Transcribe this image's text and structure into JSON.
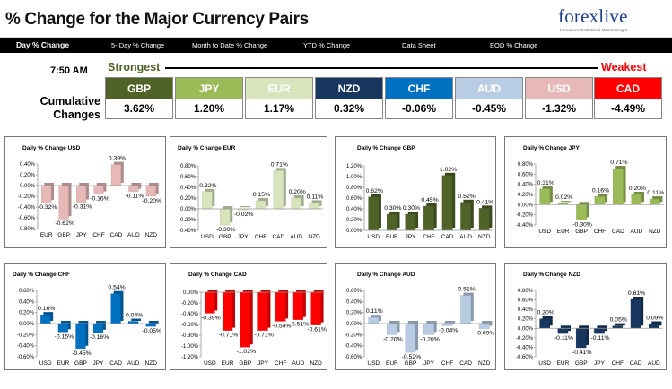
{
  "header": {
    "title": "% Change for the Major Currency Pairs",
    "logo_text": "forexlive",
    "logo_tagline": "Forexlive's Institutional Market Insight"
  },
  "nav": {
    "items": [
      {
        "label": "Day % Change",
        "active": true
      },
      {
        "label": "5- Day % Change",
        "active": false
      },
      {
        "label": "Month to Date % Change",
        "active": false
      },
      {
        "label": "YTD % Change",
        "active": false
      },
      {
        "label": "Data Sheet",
        "active": false
      },
      {
        "label": "EOD % Change",
        "active": false
      }
    ]
  },
  "summary": {
    "time": "7:50 AM",
    "strongest_label": "Strongest",
    "weakest_label": "Weakest",
    "cumulative_label": "Cumulative Changes",
    "currencies": [
      {
        "code": "GBP",
        "value": "3.62%",
        "color": "#4f6228"
      },
      {
        "code": "JPY",
        "value": "1.20%",
        "color": "#9bbb59"
      },
      {
        "code": "EUR",
        "value": "1.17%",
        "color": "#d7e4bc"
      },
      {
        "code": "NZD",
        "value": "0.32%",
        "color": "#17375e"
      },
      {
        "code": "CHF",
        "value": "-0.06%",
        "color": "#0070c0"
      },
      {
        "code": "AUD",
        "value": "-0.45%",
        "color": "#b8cce4"
      },
      {
        "code": "USD",
        "value": "-1.32%",
        "color": "#e6b9b8"
      },
      {
        "code": "CAD",
        "value": "-4.49%",
        "color": "#ff0000"
      }
    ]
  },
  "chart_data": [
    {
      "type": "bar",
      "title": "Daily % Change USD",
      "categories": [
        "EUR",
        "GBP",
        "JPY",
        "CHF",
        "CAD",
        "AUD",
        "NZD"
      ],
      "values": [
        -0.32,
        -0.62,
        -0.31,
        -0.16,
        0.39,
        -0.11,
        -0.2
      ],
      "value_labels": [
        "-0.32%",
        "-0.62%",
        "-0.31%",
        "-0.16%",
        "0.39%",
        "-0.11%",
        "-0.20%"
      ],
      "ylim": [
        -0.8,
        0.4
      ],
      "yticks": [
        "0.40%",
        "0.20%",
        "0.00%",
        "-0.20%",
        "-0.40%",
        "-0.60%",
        "-0.80%"
      ],
      "color": "#e6b9b8"
    },
    {
      "type": "bar",
      "title": "Daily % Change EUR",
      "categories": [
        "USD",
        "GBP",
        "JPY",
        "CHF",
        "CAD",
        "AUD",
        "NZD"
      ],
      "values": [
        0.32,
        -0.3,
        -0.02,
        0.15,
        0.71,
        0.2,
        0.11
      ],
      "value_labels": [
        "0.32%",
        "-0.30%",
        "-0.02%",
        "0.15%",
        "0.71%",
        "0.20%",
        "0.11%"
      ],
      "ylim": [
        -0.4,
        0.8
      ],
      "yticks": [
        "0.80%",
        "0.60%",
        "0.40%",
        "0.20%",
        "0.00%",
        "-0.20%",
        "-0.40%"
      ],
      "color": "#d7e4bc"
    },
    {
      "type": "bar",
      "title": "Daily % Change GBP",
      "categories": [
        "USD",
        "EUR",
        "JPY",
        "CHF",
        "CAD",
        "AUD",
        "NZD"
      ],
      "values": [
        0.62,
        0.3,
        0.3,
        0.45,
        1.02,
        0.52,
        0.41
      ],
      "value_labels": [
        "0.62%",
        "0.30%",
        "0.30%",
        "0.45%",
        "1.02%",
        "0.52%",
        "0.41%"
      ],
      "ylim": [
        0,
        1.2
      ],
      "yticks": [
        "1.20%",
        "1.00%",
        "0.80%",
        "0.60%",
        "0.40%",
        "0.20%",
        "0.00%"
      ],
      "color": "#4f6228"
    },
    {
      "type": "bar",
      "title": "Daily % Change JPY",
      "categories": [
        "USD",
        "EUR",
        "GBP",
        "CHF",
        "CAD",
        "AUD",
        "NZD"
      ],
      "values": [
        0.31,
        0.02,
        -0.3,
        0.16,
        0.71,
        0.2,
        0.11
      ],
      "value_labels": [
        "0.31%",
        "0.02%",
        "-0.30%",
        "0.16%",
        "0.71%",
        "0.20%",
        "0.11%"
      ],
      "ylim": [
        -0.4,
        0.8
      ],
      "yticks": [
        "0.80%",
        "0.60%",
        "0.40%",
        "0.20%",
        "0.00%",
        "-0.20%",
        "-0.40%"
      ],
      "color": "#9bbb59"
    },
    {
      "type": "bar",
      "title": "Daily % Change CHF",
      "categories": [
        "USD",
        "EUR",
        "GBP",
        "JPY",
        "CAD",
        "AUD",
        "NZD"
      ],
      "values": [
        0.16,
        -0.15,
        -0.45,
        -0.16,
        0.54,
        0.04,
        -0.05
      ],
      "value_labels": [
        "0.16%",
        "-0.15%",
        "-0.45%",
        "-0.16%",
        "0.54%",
        "0.04%",
        "-0.05%"
      ],
      "ylim": [
        -0.6,
        0.6
      ],
      "yticks": [
        "0.60%",
        "0.40%",
        "0.20%",
        "0.00%",
        "-0.20%",
        "-0.40%",
        "-0.60%"
      ],
      "color": "#0070c0"
    },
    {
      "type": "bar",
      "title": "Daily % Change CAD",
      "categories": [
        "USD",
        "EUR",
        "GBP",
        "JPY",
        "CHF",
        "AUD",
        "NZD"
      ],
      "values": [
        -0.39,
        -0.71,
        -1.02,
        -0.71,
        -0.54,
        -0.51,
        -0.61
      ],
      "value_labels": [
        "-0.39%",
        "-0.71%",
        "-1.02%",
        "-0.71%",
        "-0.54%",
        "-0.51%",
        "-0.61%"
      ],
      "ylim": [
        -1.2,
        0
      ],
      "yticks": [
        "0.00%",
        "-0.20%",
        "-0.40%",
        "-0.60%",
        "-0.80%",
        "-1.00%",
        "-1.20%"
      ],
      "color": "#ff0000"
    },
    {
      "type": "bar",
      "title": "Daily % Change AUD",
      "categories": [
        "USD",
        "EUR",
        "GBP",
        "JPY",
        "CHF",
        "CAD",
        "NZD"
      ],
      "values": [
        0.11,
        -0.2,
        -0.52,
        -0.2,
        -0.04,
        0.51,
        -0.09
      ],
      "value_labels": [
        "0.11%",
        "-0.20%",
        "-0.52%",
        "-0.20%",
        "-0.04%",
        "0.51%",
        "-0.09%"
      ],
      "ylim": [
        -0.6,
        0.6
      ],
      "yticks": [
        "0.60%",
        "0.40%",
        "0.20%",
        "0.00%",
        "-0.20%",
        "-0.40%",
        "-0.60%"
      ],
      "color": "#b8cce4"
    },
    {
      "type": "bar",
      "title": "Daily % Change NZD",
      "categories": [
        "USD",
        "EUR",
        "GBP",
        "JPY",
        "CHF",
        "CAD",
        "AUD"
      ],
      "values": [
        0.2,
        -0.11,
        -0.41,
        -0.11,
        0.05,
        0.61,
        0.09
      ],
      "value_labels": [
        "0.20%",
        "-0.11%",
        "-0.41%",
        "-0.11%",
        "0.05%",
        "0.61%",
        "0.09%"
      ],
      "ylim": [
        -0.6,
        0.8
      ],
      "yticks": [
        "0.80%",
        "0.60%",
        "0.40%",
        "0.20%",
        "0.00%",
        "-0.20%",
        "-0.40%",
        "-0.60%"
      ],
      "color": "#17375e"
    }
  ]
}
